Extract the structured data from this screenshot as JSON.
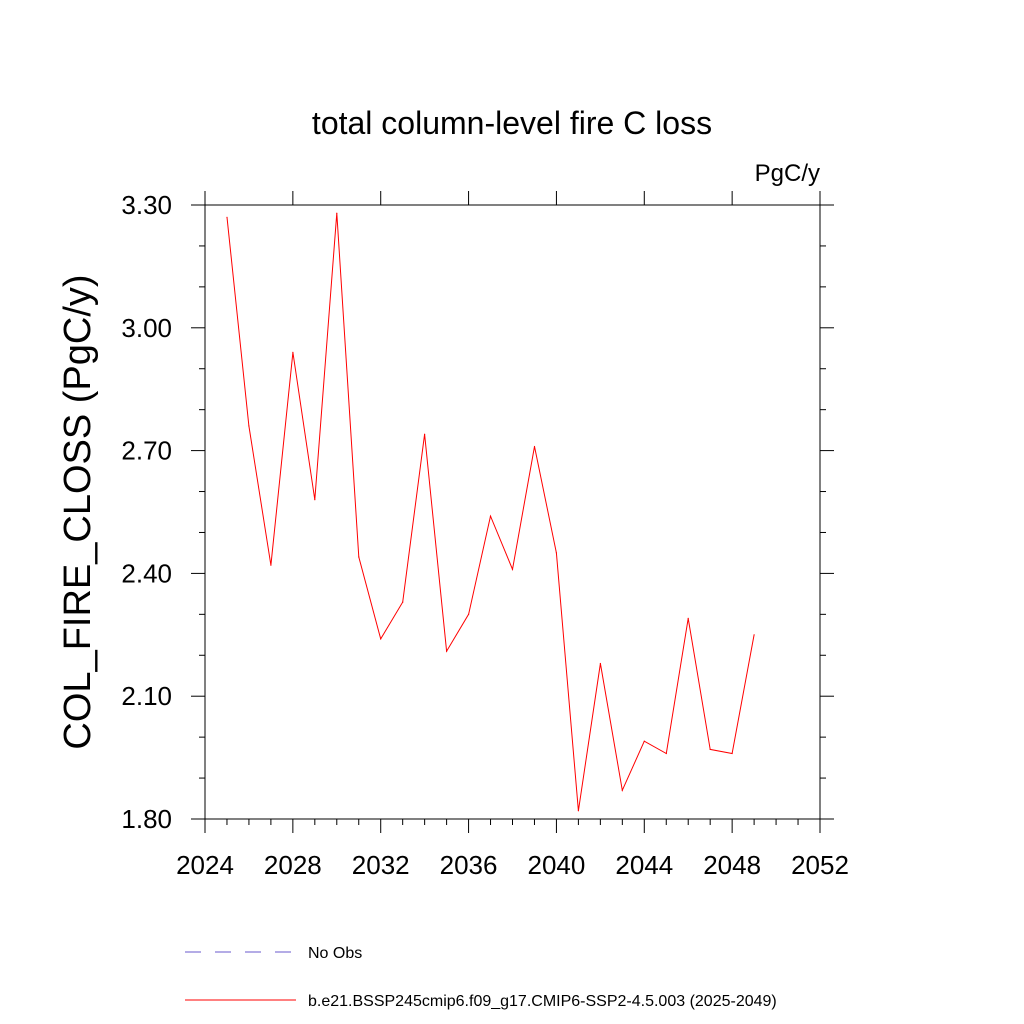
{
  "chart_data": {
    "type": "line",
    "title": "total column-level fire C loss",
    "units_label": "PgC/y",
    "ylabel": "COL_FIRE_CLOSS  (PgC/y)",
    "xlabel": "",
    "xlim": [
      2024,
      2052
    ],
    "ylim": [
      1.8,
      3.3
    ],
    "x_ticks": [
      2024,
      2028,
      2032,
      2036,
      2040,
      2044,
      2048,
      2052
    ],
    "y_ticks": [
      "1.80",
      "2.10",
      "2.40",
      "2.70",
      "3.00",
      "3.30"
    ],
    "grid": false,
    "legend_placement": "bottom",
    "series": [
      {
        "name": "b.e21.BSSP245cmip6.f09_g17.CMIP6-SSP2-4.5.003 (2025-2049)",
        "color": "#ff0000",
        "line_style": "solid",
        "x": [
          2025,
          2026,
          2027,
          2028,
          2029,
          2030,
          2031,
          2032,
          2033,
          2034,
          2035,
          2036,
          2037,
          2038,
          2039,
          2040,
          2041,
          2042,
          2043,
          2044,
          2045,
          2046,
          2047,
          2048,
          2049
        ],
        "y": [
          3.27,
          2.76,
          2.42,
          2.94,
          2.58,
          3.28,
          2.44,
          2.24,
          2.33,
          2.74,
          2.21,
          2.3,
          2.54,
          2.41,
          2.71,
          2.45,
          1.82,
          2.18,
          1.87,
          1.99,
          1.96,
          2.29,
          1.97,
          1.96,
          2.25
        ]
      }
    ],
    "legend": [
      {
        "label": "No Obs",
        "color": "#6a5acd",
        "line_style": "dashed"
      },
      {
        "label": "b.e21.BSSP245cmip6.f09_g17.CMIP6-SSP2-4.5.003 (2025-2049)",
        "color": "#ff0000",
        "line_style": "solid"
      }
    ]
  }
}
